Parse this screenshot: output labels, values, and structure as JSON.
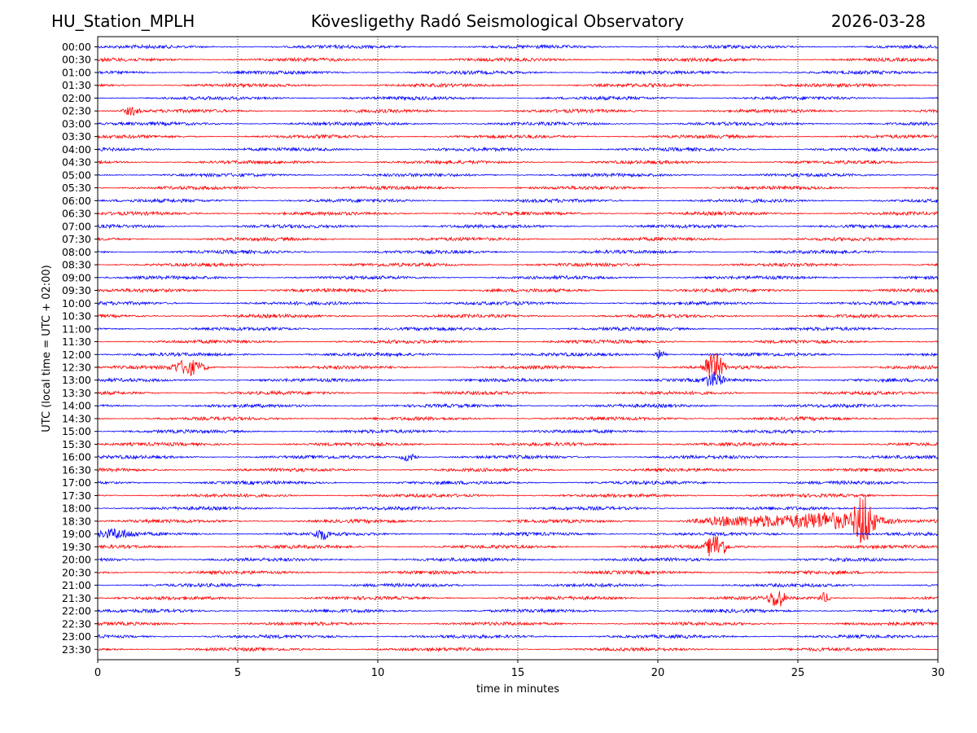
{
  "header": {
    "station": "HU_Station_MPLH",
    "observatory": "Kövesligethy Radó Seismological Observatory",
    "date": "2026-03-28"
  },
  "colors": {
    "odd": "#0000ff",
    "even": "#ff0000"
  },
  "chart_data": {
    "type": "line",
    "title": "Kövesligethy Radó Seismological Observatory",
    "xlabel": "time in minutes",
    "ylabel": "UTC (local time = UTC + 02:00)",
    "xlim": [
      0,
      30
    ],
    "xticks": [
      "0",
      "5",
      "10",
      "15",
      "20",
      "25",
      "30"
    ],
    "grid": "vertical dotted at each x tick",
    "row_labels": [
      "00:00",
      "00:30",
      "01:00",
      "01:30",
      "02:00",
      "02:30",
      "03:00",
      "03:30",
      "04:00",
      "04:30",
      "05:00",
      "05:30",
      "06:00",
      "06:30",
      "07:00",
      "07:30",
      "08:00",
      "08:30",
      "09:00",
      "09:30",
      "10:00",
      "10:30",
      "11:00",
      "11:30",
      "12:00",
      "12:30",
      "13:00",
      "13:30",
      "14:00",
      "14:30",
      "15:00",
      "15:30",
      "16:00",
      "16:30",
      "17:00",
      "17:30",
      "18:00",
      "18:30",
      "19:00",
      "19:30",
      "20:00",
      "20:30",
      "21:00",
      "21:30",
      "22:00",
      "22:30",
      "23:00",
      "23:30"
    ],
    "events": [
      {
        "row": "02:30",
        "minute": 1.2,
        "amp": 2.5,
        "dur": 0.4
      },
      {
        "row": "12:00",
        "minute": 20.1,
        "amp": 3,
        "dur": 0.3
      },
      {
        "row": "12:30",
        "minute": 3.25,
        "amp": 4.5,
        "dur": 0.8
      },
      {
        "row": "12:30",
        "minute": 21.8,
        "amp": 6,
        "dur": 0.3
      },
      {
        "row": "12:30",
        "minute": 22.1,
        "amp": 7,
        "dur": 0.4
      },
      {
        "row": "13:00",
        "minute": 22.0,
        "amp": 4,
        "dur": 0.5
      },
      {
        "row": "16:00",
        "minute": 11.1,
        "amp": 2.5,
        "dur": 0.4
      },
      {
        "row": "18:30",
        "minute": 22.7,
        "amp": 2.5,
        "dur": 2.0
      },
      {
        "row": "18:30",
        "minute": 26.0,
        "amp": 5,
        "dur": 3.0
      },
      {
        "row": "18:30",
        "minute": 27.35,
        "amp": 15,
        "dur": 0.5
      },
      {
        "row": "19:00",
        "minute": 0.6,
        "amp": 2.5,
        "dur": 1.0
      },
      {
        "row": "19:00",
        "minute": 8.0,
        "amp": 3,
        "dur": 0.4
      },
      {
        "row": "19:30",
        "minute": 21.9,
        "amp": 5,
        "dur": 0.3
      },
      {
        "row": "19:30",
        "minute": 22.2,
        "amp": 6,
        "dur": 0.4
      },
      {
        "row": "21:30",
        "minute": 24.25,
        "amp": 6,
        "dur": 0.4
      },
      {
        "row": "21:30",
        "minute": 25.95,
        "amp": 3,
        "dur": 0.3
      }
    ]
  }
}
